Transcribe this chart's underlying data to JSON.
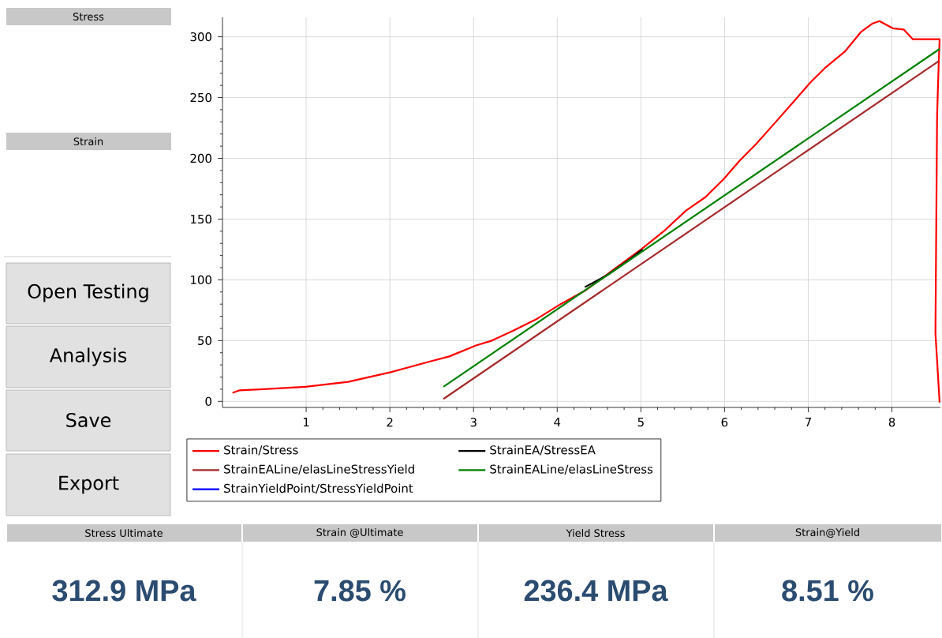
{
  "chart_data": {
    "type": "line",
    "series": [
      {
        "name": "Strain/Stress",
        "color": "#ff0000",
        "x": [
          0.12,
          0.2,
          0.49,
          0.99,
          1.5,
          2.01,
          2.49,
          2.71,
          3.03,
          3.22,
          3.47,
          3.76,
          4.04,
          4.33,
          5.02,
          5.29,
          5.54,
          5.77,
          5.99,
          6.18,
          6.38,
          6.6,
          6.83,
          7.02,
          7.21,
          7.44,
          7.63,
          7.77,
          7.85,
          8.01,
          8.14,
          8.25,
          8.57,
          8.56,
          8.54,
          8.52,
          8.57
        ],
        "values": [
          7,
          9,
          10,
          12,
          16,
          24,
          33,
          37,
          46,
          50,
          58,
          68,
          80,
          91,
          126,
          141,
          157,
          168,
          183,
          198,
          212,
          229,
          247,
          262,
          275,
          288,
          304,
          311,
          312.9,
          307,
          306,
          298,
          298,
          280,
          236,
          56,
          -1
        ]
      },
      {
        "name": "StrainEA/StressEA",
        "color": "#000000",
        "x": [
          4.33,
          4.6,
          4.85,
          5.02
        ],
        "values": [
          94,
          104,
          116,
          125
        ]
      },
      {
        "name": "StrainEALine/elasLineStressYield",
        "color": "#a52a2a",
        "x": [
          2.64,
          8.56
        ],
        "values": [
          2,
          280
        ]
      },
      {
        "name": "StrainEALine/elasLineStress",
        "color": "#008000",
        "x": [
          2.64,
          8.57
        ],
        "values": [
          12,
          290
        ]
      },
      {
        "name": "StrainYieldPoint/StressYieldPoint",
        "color": "#0000ff"
      }
    ],
    "xlim": [
      0,
      8.58
    ],
    "ylim": [
      -5,
      316
    ],
    "xticks": [
      1,
      2,
      3,
      4,
      5,
      6,
      7,
      8
    ],
    "yticks": [
      0,
      50,
      100,
      150,
      200,
      250,
      300
    ],
    "grid": true,
    "legend": "bottom",
    "marker": "none",
    "line_style": "solid",
    "annotations": [
      "Stress",
      "Strain",
      "Open Testing",
      "Analysis",
      "Save",
      "Export",
      "Stress Ultimate",
      "Strain @Ultimate",
      "Yield Stress",
      "Strain@Yield",
      "312.9 MPa",
      "7.85 %",
      "236.4 MPa",
      "8.51 %"
    ]
  }
}
